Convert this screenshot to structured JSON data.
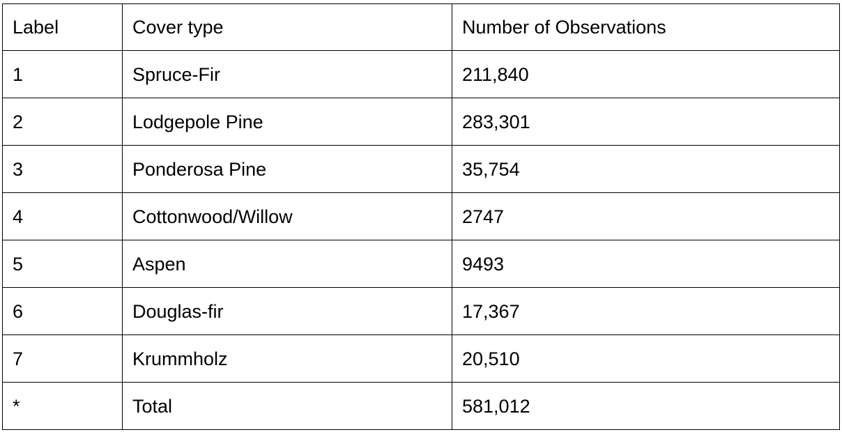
{
  "table": {
    "headers": [
      "Label",
      "Cover type",
      "Number of Observations"
    ],
    "rows": [
      [
        "1",
        "Spruce-Fir",
        "211,840"
      ],
      [
        "2",
        "Lodgepole Pine",
        "283,301"
      ],
      [
        "3",
        "Ponderosa Pine",
        "35,754"
      ],
      [
        "4",
        "Cottonwood/Willow",
        "2747"
      ],
      [
        "5",
        "Aspen",
        "9493"
      ],
      [
        "6",
        "Douglas-fir",
        "17,367"
      ],
      [
        "7",
        "Krummholz",
        "20,510"
      ],
      [
        "*",
        "Total",
        "581,012"
      ]
    ]
  }
}
